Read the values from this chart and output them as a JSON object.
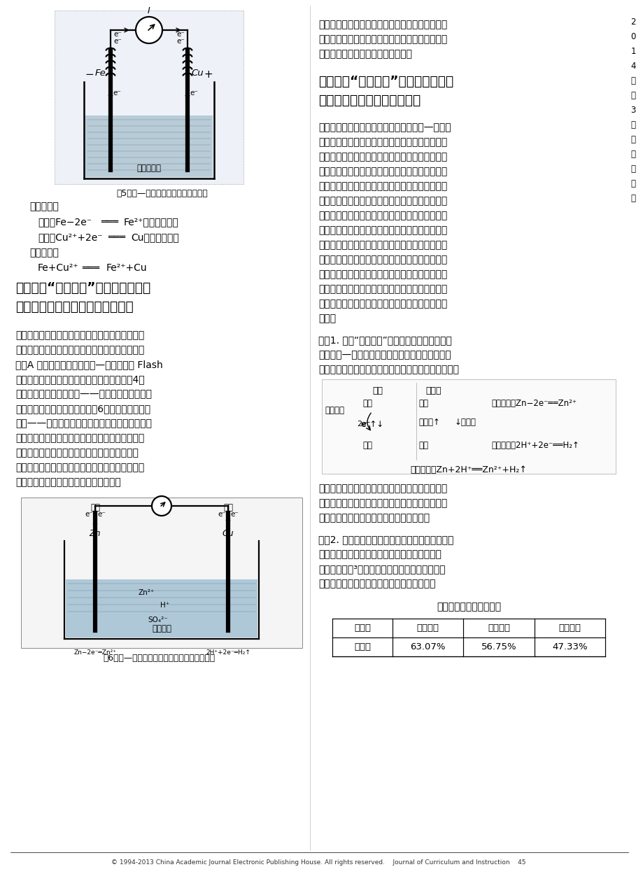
{
  "page_bg": "#ffffff",
  "sidebar_chars": [
    "2",
    "0",
    "1",
    "4",
    "年",
    "第",
    "3",
    "期",
    "／",
    "现",
    "象",
    "透",
    "视"
  ],
  "fig5_caption": "图5　铜—鐵（硫酸铜）原电池示意图",
  "fig5_solution": "硫酸铜溶液",
  "fig6_caption": "图6　铜—锤（硫酸）原电池的模拟动画示意图",
  "fig6_solution": "硫酸溶液",
  "table_headers": [
    "项　目",
    "符号辨识",
    "符号理解",
    "符号应用"
  ],
  "table_row": [
    "百分率",
    "63.07%",
    "56.75%",
    "47.33%"
  ],
  "table_title": "化学符号学习水平测定表"
}
